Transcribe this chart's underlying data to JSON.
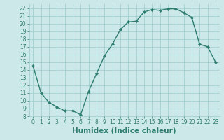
{
  "x": [
    0,
    1,
    2,
    3,
    4,
    5,
    6,
    7,
    8,
    9,
    10,
    11,
    12,
    13,
    14,
    15,
    16,
    17,
    18,
    19,
    20,
    21,
    22,
    23
  ],
  "y": [
    14.5,
    11.0,
    9.8,
    9.2,
    8.7,
    8.7,
    8.2,
    11.2,
    13.5,
    15.8,
    17.3,
    19.2,
    20.2,
    20.3,
    21.5,
    21.8,
    21.7,
    21.9,
    21.9,
    21.4,
    20.8,
    17.3,
    17.0,
    15.0
  ],
  "line_color": "#2d7d6e",
  "marker": "D",
  "marker_size": 2.0,
  "bg_color": "#cce8e8",
  "grid_color": "#99cccc",
  "xlabel": "Humidex (Indice chaleur)",
  "ylim": [
    8,
    22.5
  ],
  "xlim": [
    -0.5,
    23.5
  ],
  "yticks": [
    8,
    9,
    10,
    11,
    12,
    13,
    14,
    15,
    16,
    17,
    18,
    19,
    20,
    21,
    22
  ],
  "xticks": [
    0,
    1,
    2,
    3,
    4,
    5,
    6,
    7,
    8,
    9,
    10,
    11,
    12,
    13,
    14,
    15,
    16,
    17,
    18,
    19,
    20,
    21,
    22,
    23
  ],
  "tick_color": "#2d7d6e",
  "xlabel_fontsize": 7.5,
  "tick_fontsize": 5.5,
  "line_width": 1.0
}
